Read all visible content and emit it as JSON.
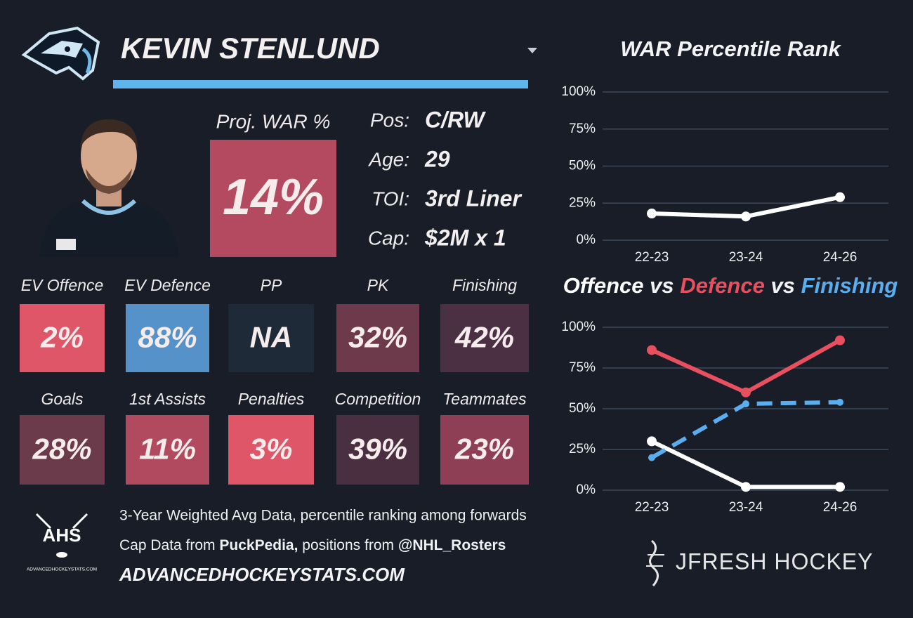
{
  "header": {
    "name": "KEVIN STENLUND"
  },
  "projection": {
    "label": "Proj. WAR %",
    "value": "14%",
    "color": "#b44a5f"
  },
  "info": [
    {
      "label": "Pos:",
      "value": "C/RW"
    },
    {
      "label": "Age:",
      "value": "29"
    },
    {
      "label": "TOI:",
      "value": "3rd Liner"
    },
    {
      "label": "Cap:",
      "value": "$2M x 1"
    }
  ],
  "tiles": [
    {
      "label": "EV Offence",
      "value": "2%",
      "color": "#df5669"
    },
    {
      "label": "EV Defence",
      "value": "88%",
      "color": "#5592c9"
    },
    {
      "label": "PP",
      "value": "NA",
      "color": "#1f2a38"
    },
    {
      "label": "PK",
      "value": "32%",
      "color": "#6d3a4b"
    },
    {
      "label": "Finishing",
      "value": "42%",
      "color": "#4a3042"
    },
    {
      "label": "Goals",
      "value": "28%",
      "color": "#6b3a4b"
    },
    {
      "label": "1st Assists",
      "value": "11%",
      "color": "#b24a5f"
    },
    {
      "label": "Penalties",
      "value": "3%",
      "color": "#df5669"
    },
    {
      "label": "Competition",
      "value": "39%",
      "color": "#4a2f40"
    },
    {
      "label": "Teammates",
      "value": "23%",
      "color": "#8e3f55"
    }
  ],
  "footer": {
    "note": "3-Year Weighted Avg Data, percentile ranking among forwards",
    "sources": [
      {
        "text": "Cap Data from ",
        "bold": false
      },
      {
        "text": "PuckPedia,",
        "bold": true
      },
      {
        "text": " positions from ",
        "bold": false
      },
      {
        "text": "@NHL_Rosters",
        "bold": true
      }
    ],
    "website": "ADVANCEDHOCKEYSTATS.COM",
    "ahs_logo": "AHS",
    "ahs_logo_caption": "ADVANCEDHOCKEYSTATS.COM",
    "brand": "JFRESH HOCKEY"
  },
  "chart_data": [
    {
      "type": "line",
      "title": "WAR Percentile Rank",
      "categories": [
        "22-23",
        "23-24",
        "24-26"
      ],
      "series": [
        {
          "color": "#ffffff",
          "values": [
            18,
            16,
            29
          ]
        }
      ],
      "ylim": [
        0,
        100
      ],
      "yticks": [
        {
          "value": 0,
          "label": "0%"
        },
        {
          "value": 25,
          "label": "25%"
        },
        {
          "value": 50,
          "label": "50%"
        },
        {
          "value": 75,
          "label": "75%"
        },
        {
          "value": 100,
          "label": "100%"
        }
      ],
      "grid": true
    },
    {
      "type": "line",
      "title_joiner": " vs ",
      "categories": [
        "22-23",
        "23-24",
        "24-26"
      ],
      "series": [
        {
          "name": "Offence",
          "color": "#ffffff",
          "values": [
            30,
            2,
            2
          ],
          "dashed": false
        },
        {
          "name": "Defence",
          "color": "#e8505f",
          "values": [
            86,
            60,
            92
          ],
          "dashed": false
        },
        {
          "name": "Finishing",
          "color": "#5aaef0",
          "values": [
            20,
            53,
            54
          ],
          "dashed": true
        }
      ],
      "ylim": [
        0,
        100
      ],
      "yticks": [
        {
          "value": 0,
          "label": "0%"
        },
        {
          "value": 25,
          "label": "25%"
        },
        {
          "value": 50,
          "label": "50%"
        },
        {
          "value": 75,
          "label": "75%"
        },
        {
          "value": 100,
          "label": "100%"
        }
      ],
      "grid": true
    }
  ]
}
